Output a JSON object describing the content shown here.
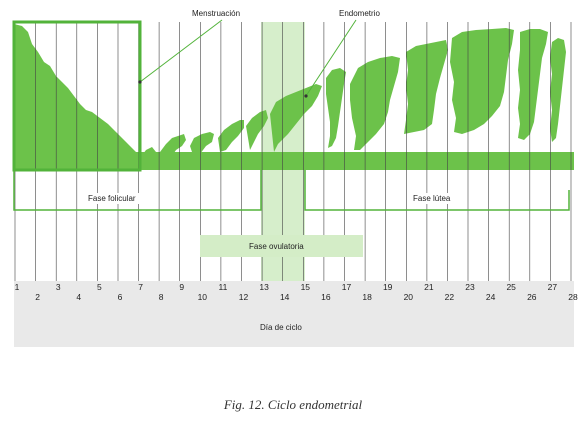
{
  "labels": {
    "menstruation": "Menstruación",
    "endometrium": "Endometrio",
    "follicular_phase": "Fase folicular",
    "luteal_phase": "Fase lútea",
    "ovulatory_phase": "Fase ovulatoria",
    "cycle_day": "Día de ciclo"
  },
  "days": [
    "1",
    "2",
    "3",
    "4",
    "5",
    "6",
    "7",
    "8",
    "9",
    "10",
    "11",
    "12",
    "13",
    "14",
    "15",
    "16",
    "17",
    "18",
    "19",
    "20",
    "21",
    "22",
    "23",
    "24",
    "25",
    "26",
    "27",
    "28"
  ],
  "caption": "Fig. 12. Ciclo endometrial",
  "colors": {
    "endometrium": "#6cc24a",
    "frame": "#52b33a",
    "ovulatory_band": "#d4edc7",
    "axis_band": "#e8e8e8",
    "line": "#333333"
  }
}
